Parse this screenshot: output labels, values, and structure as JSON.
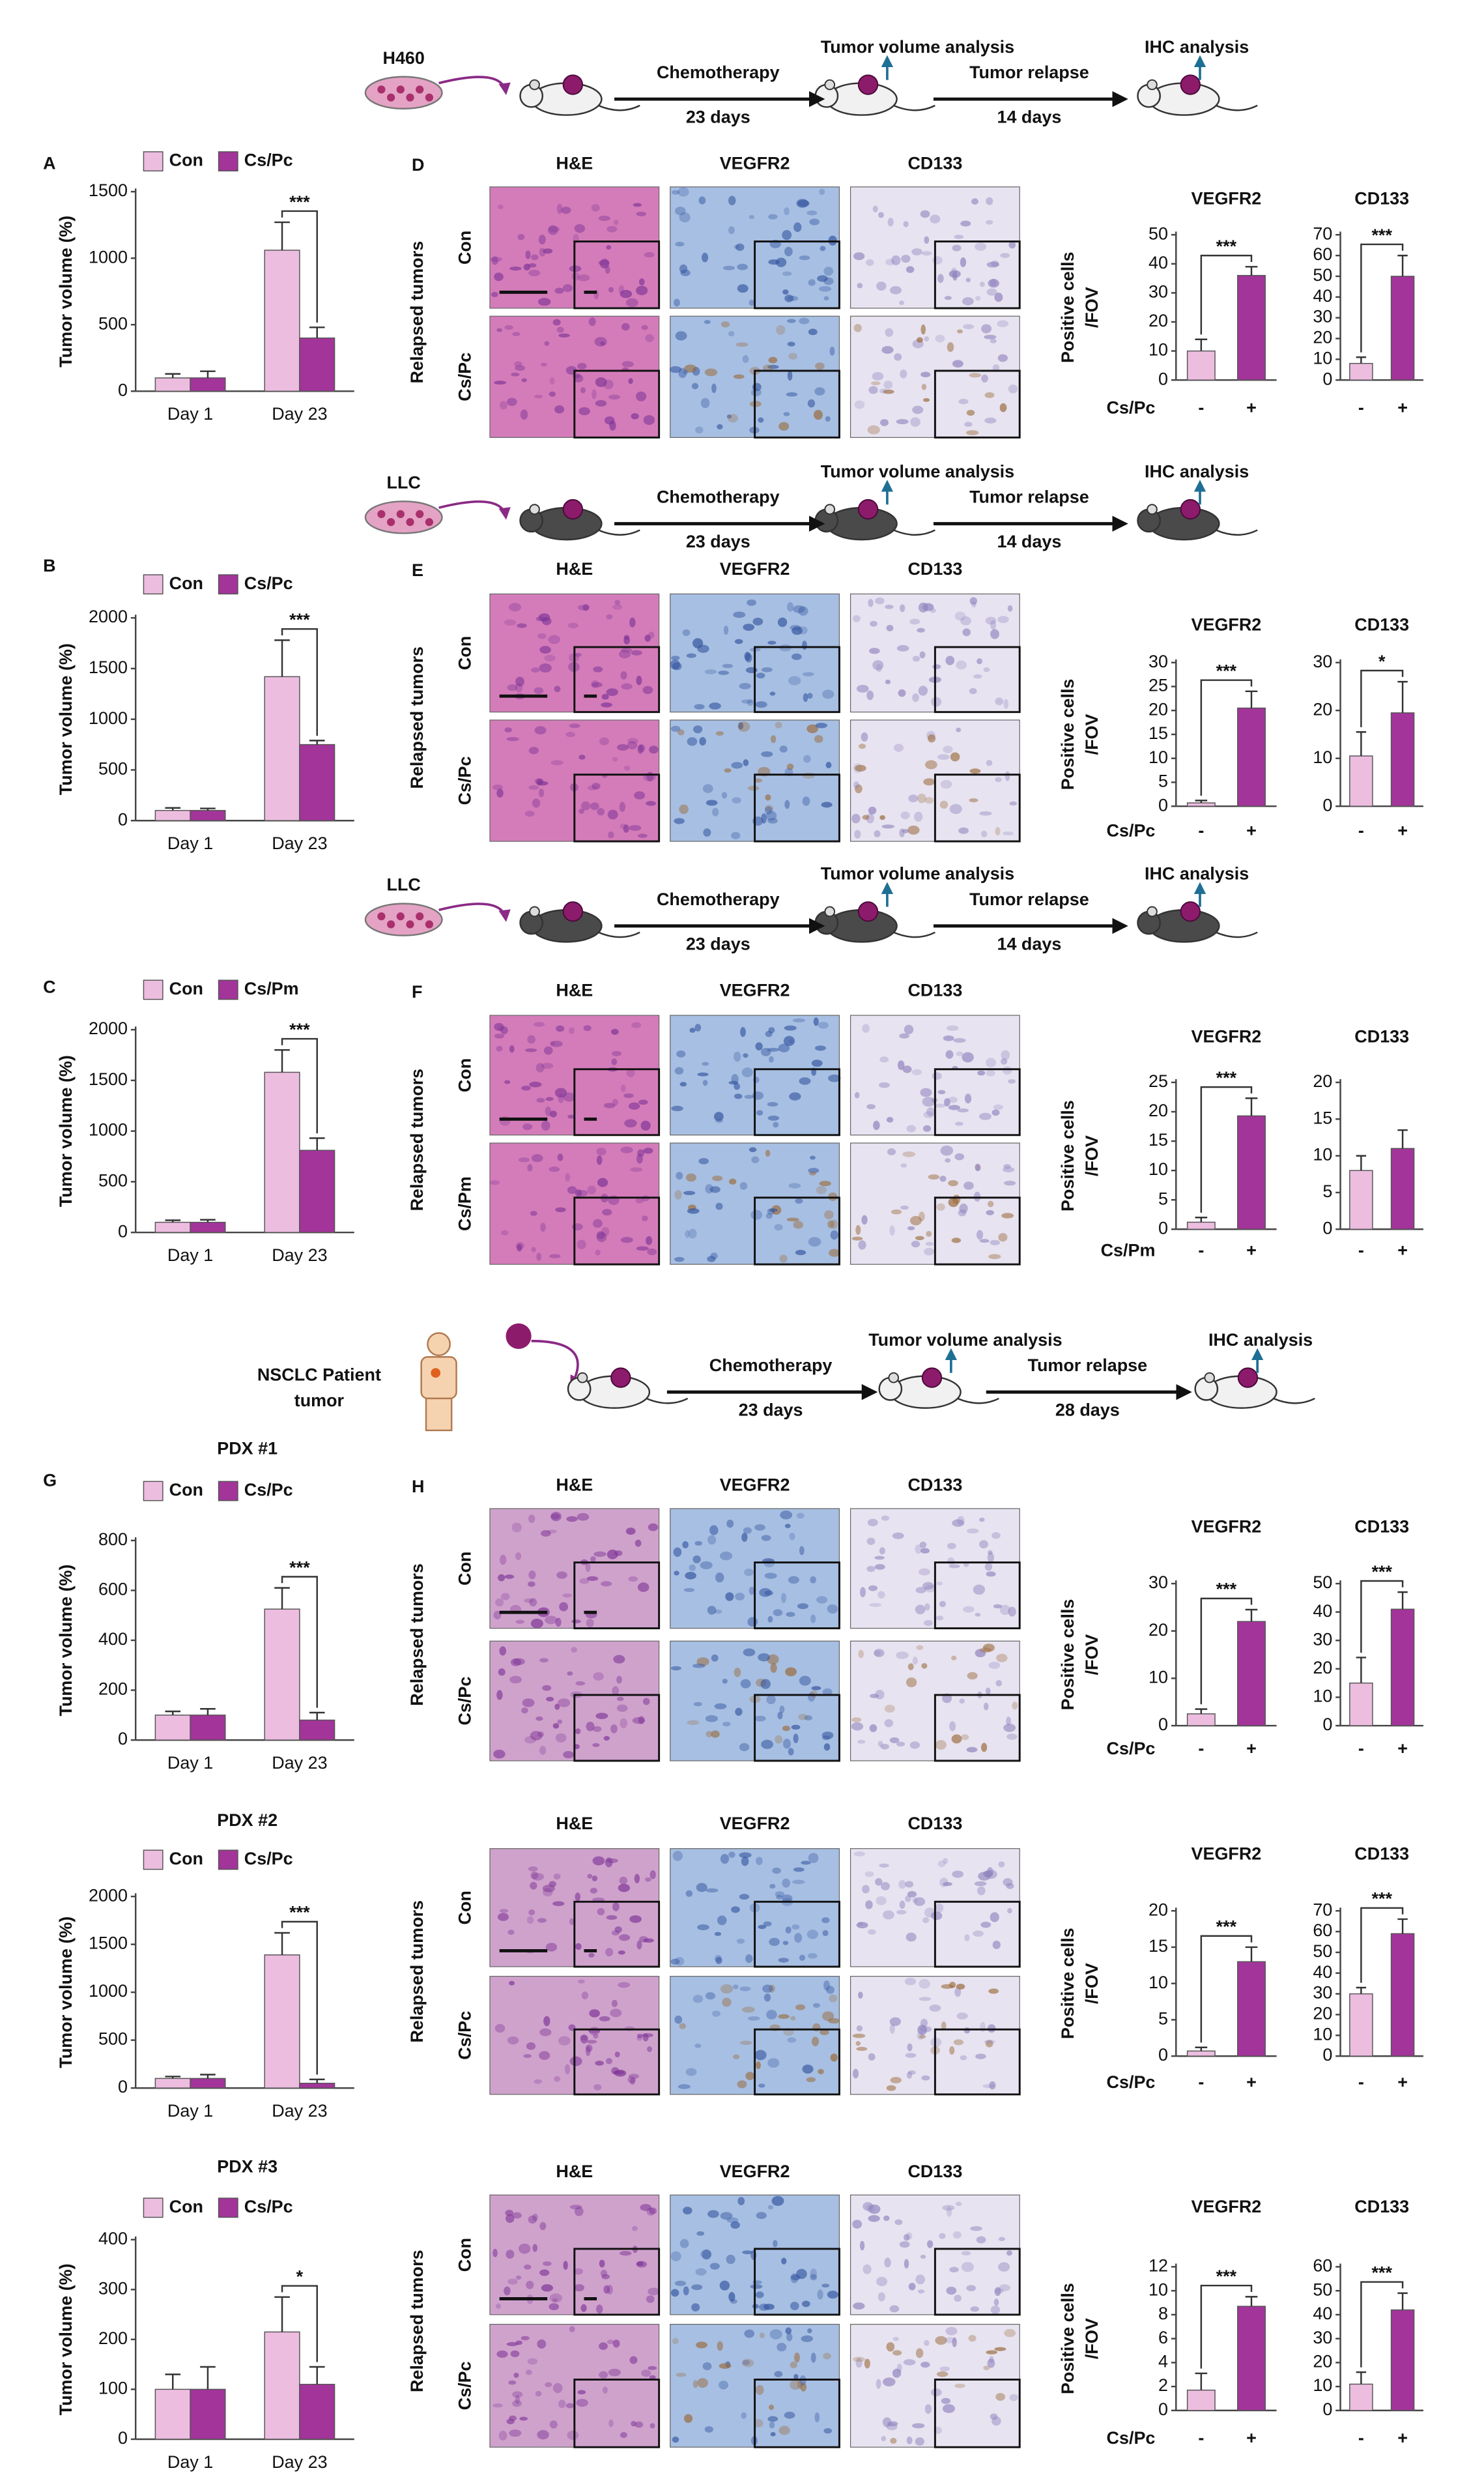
{
  "schematics": [
    {
      "source": [
        "H460"
      ],
      "steps": [
        "Chemotherapy",
        "Tumor relapse"
      ],
      "durations": [
        "23 days",
        "14 days"
      ],
      "analyses": [
        "Tumor volume analysis",
        "IHC analysis"
      ]
    },
    {
      "source": [
        "LLC"
      ],
      "steps": [
        "Chemotherapy",
        "Tumor relapse"
      ],
      "durations": [
        "23 days",
        "14 days"
      ],
      "analyses": [
        "Tumor volume analysis",
        "IHC analysis"
      ]
    },
    {
      "source": [
        "LLC"
      ],
      "steps": [
        "Chemotherapy",
        "Tumor relapse"
      ],
      "durations": [
        "23 days",
        "14 days"
      ],
      "analyses": [
        "Tumor volume analysis",
        "IHC analysis"
      ]
    },
    {
      "source": [
        "NSCLC Patient",
        "tumor"
      ],
      "steps": [
        "Chemotherapy",
        "Tumor relapse"
      ],
      "durations": [
        "23 days",
        "28 days"
      ],
      "analyses": [
        "Tumor volume analysis",
        "IHC analysis"
      ]
    }
  ],
  "ihc": [
    {
      "panel": "D",
      "columns": [
        "H&E",
        "VEGFR2",
        "CD133"
      ],
      "rows": [
        "Con",
        "Cs/Pc"
      ],
      "side_label": "Relapsed tumors"
    },
    {
      "panel": "E",
      "columns": [
        "H&E",
        "VEGFR2",
        "CD133"
      ],
      "rows": [
        "Con",
        "Cs/Pc"
      ],
      "side_label": "Relapsed tumors"
    },
    {
      "panel": "F",
      "columns": [
        "H&E",
        "VEGFR2",
        "CD133"
      ],
      "rows": [
        "Con",
        "Cs/Pm"
      ],
      "side_label": "Relapsed tumors"
    },
    {
      "panel": "H",
      "columns": [
        "H&E",
        "VEGFR2",
        "CD133"
      ],
      "rows": [
        "Con",
        "Cs/Pc"
      ],
      "side_label": "Relapsed tumors"
    },
    {
      "columns": [
        "H&E",
        "VEGFR2",
        "CD133"
      ],
      "rows": [
        "Con",
        "Cs/Pc"
      ],
      "side_label": "Relapsed tumors"
    },
    {
      "columns": [
        "H&E",
        "VEGFR2",
        "CD133"
      ],
      "rows": [
        "Con",
        "Cs/Pc"
      ],
      "side_label": "Relapsed tumors"
    }
  ],
  "chart_data": [
    {
      "type": "bar",
      "panel": "A",
      "ylabel": "Tumor volume (%)",
      "categories": [
        "Day 1",
        "Day 23"
      ],
      "series": [
        {
          "name": "Con",
          "color": "#edbde0",
          "values": [
            100,
            1060
          ],
          "errors": [
            30,
            210
          ]
        },
        {
          "name": "Cs/Pc",
          "color": "#a3349a",
          "values": [
            100,
            400
          ],
          "errors": [
            50,
            80
          ]
        }
      ],
      "ylim": [
        0,
        1500
      ],
      "yticks": [
        0,
        500,
        1000,
        1500
      ],
      "significance": "***"
    },
    {
      "type": "bar",
      "title": "VEGFR2",
      "ylabel": [
        "Positive cells",
        "/FOV"
      ],
      "xlabel": "Cs/Pc",
      "categories": [
        "-",
        "+"
      ],
      "values": [
        10,
        36
      ],
      "errors": [
        4,
        3
      ],
      "colors": [
        "#edbde0",
        "#a3349a"
      ],
      "ylim": [
        0,
        50
      ],
      "yticks": [
        0,
        10,
        20,
        30,
        40,
        50
      ],
      "significance": "***"
    },
    {
      "type": "bar",
      "title": "CD133",
      "categories": [
        "-",
        "+"
      ],
      "values": [
        8,
        50
      ],
      "errors": [
        3,
        10
      ],
      "colors": [
        "#edbde0",
        "#a3349a"
      ],
      "ylim": [
        0,
        70
      ],
      "yticks": [
        0,
        10,
        20,
        30,
        40,
        50,
        60,
        70
      ],
      "significance": "***"
    },
    {
      "type": "bar",
      "panel": "B",
      "ylabel": "Tumor volume (%)",
      "categories": [
        "Day 1",
        "Day 23"
      ],
      "series": [
        {
          "name": "Con",
          "color": "#edbde0",
          "values": [
            100,
            1420
          ],
          "errors": [
            25,
            360
          ]
        },
        {
          "name": "Cs/Pc",
          "color": "#a3349a",
          "values": [
            100,
            750
          ],
          "errors": [
            20,
            40
          ]
        }
      ],
      "ylim": [
        0,
        2000
      ],
      "yticks": [
        0,
        500,
        1000,
        1500,
        2000
      ],
      "significance": "***"
    },
    {
      "type": "bar",
      "title": "VEGFR2",
      "ylabel": [
        "Positive cells",
        "/FOV"
      ],
      "xlabel": "Cs/Pc",
      "categories": [
        "-",
        "+"
      ],
      "values": [
        0.7,
        20.5
      ],
      "errors": [
        0.5,
        3.5
      ],
      "colors": [
        "#edbde0",
        "#a3349a"
      ],
      "ylim": [
        0,
        30
      ],
      "yticks": [
        0,
        5,
        10,
        15,
        20,
        25,
        30
      ],
      "significance": "***"
    },
    {
      "type": "bar",
      "title": "CD133",
      "categories": [
        "-",
        "+"
      ],
      "values": [
        10.5,
        19.5
      ],
      "errors": [
        5,
        6.5
      ],
      "colors": [
        "#edbde0",
        "#a3349a"
      ],
      "ylim": [
        0,
        30
      ],
      "yticks": [
        0,
        10,
        20,
        30
      ],
      "significance": "*"
    },
    {
      "type": "bar",
      "panel": "C",
      "ylabel": "Tumor volume (%)",
      "categories": [
        "Day 1",
        "Day 23"
      ],
      "series": [
        {
          "name": "Con",
          "color": "#edbde0",
          "values": [
            100,
            1580
          ],
          "errors": [
            20,
            220
          ]
        },
        {
          "name": "Cs/Pm",
          "color": "#a3349a",
          "values": [
            100,
            810
          ],
          "errors": [
            25,
            120
          ]
        }
      ],
      "ylim": [
        0,
        2000
      ],
      "yticks": [
        0,
        500,
        1000,
        1500,
        2000
      ],
      "significance": "***"
    },
    {
      "type": "bar",
      "title": "VEGFR2",
      "ylabel": [
        "Positive cells",
        "/FOV"
      ],
      "xlabel": "Cs/Pm",
      "categories": [
        "-",
        "+"
      ],
      "values": [
        1.2,
        19.3
      ],
      "errors": [
        0.8,
        3
      ],
      "colors": [
        "#edbde0",
        "#a3349a"
      ],
      "ylim": [
        0,
        25
      ],
      "yticks": [
        0,
        5,
        10,
        15,
        20,
        25
      ],
      "significance": "***"
    },
    {
      "type": "bar",
      "title": "CD133",
      "categories": [
        "-",
        "+"
      ],
      "values": [
        8,
        11
      ],
      "errors": [
        2,
        2.5
      ],
      "colors": [
        "#edbde0",
        "#a3349a"
      ],
      "ylim": [
        0,
        20
      ],
      "yticks": [
        0,
        5,
        10,
        15,
        20
      ]
    },
    {
      "type": "bar",
      "panel": "G",
      "title": "PDX #1",
      "ylabel": "Tumor volume (%)",
      "categories": [
        "Day 1",
        "Day 23"
      ],
      "series": [
        {
          "name": "Con",
          "color": "#edbde0",
          "values": [
            100,
            525
          ],
          "errors": [
            15,
            85
          ]
        },
        {
          "name": "Cs/Pc",
          "color": "#a3349a",
          "values": [
            100,
            80
          ],
          "errors": [
            25,
            30
          ]
        }
      ],
      "ylim": [
        0,
        800
      ],
      "yticks": [
        0,
        200,
        400,
        600,
        800
      ],
      "significance": "***"
    },
    {
      "type": "bar",
      "title": "VEGFR2",
      "ylabel": [
        "Positive cells",
        "/FOV"
      ],
      "xlabel": "Cs/Pc",
      "categories": [
        "-",
        "+"
      ],
      "values": [
        2.5,
        22
      ],
      "errors": [
        1,
        2.5
      ],
      "colors": [
        "#edbde0",
        "#a3349a"
      ],
      "ylim": [
        0,
        30
      ],
      "yticks": [
        0,
        10,
        20,
        30
      ],
      "significance": "***"
    },
    {
      "type": "bar",
      "title": "CD133",
      "categories": [
        "-",
        "+"
      ],
      "values": [
        15,
        41
      ],
      "errors": [
        9,
        6
      ],
      "colors": [
        "#edbde0",
        "#a3349a"
      ],
      "ylim": [
        0,
        50
      ],
      "yticks": [
        0,
        10,
        20,
        30,
        40,
        50
      ],
      "significance": "***"
    },
    {
      "type": "bar",
      "title": "PDX #2",
      "ylabel": "Tumor volume (%)",
      "categories": [
        "Day 1",
        "Day 23"
      ],
      "series": [
        {
          "name": "Con",
          "color": "#edbde0",
          "values": [
            100,
            1390
          ],
          "errors": [
            20,
            230
          ]
        },
        {
          "name": "Cs/Pc",
          "color": "#a3349a",
          "values": [
            100,
            50
          ],
          "errors": [
            40,
            40
          ]
        }
      ],
      "ylim": [
        0,
        2000
      ],
      "yticks": [
        0,
        500,
        1000,
        1500,
        2000
      ],
      "significance": "***"
    },
    {
      "type": "bar",
      "title": "VEGFR2",
      "ylabel": [
        "Positive cells",
        "/FOV"
      ],
      "xlabel": "Cs/Pc",
      "categories": [
        "-",
        "+"
      ],
      "values": [
        0.7,
        13
      ],
      "errors": [
        0.5,
        2
      ],
      "colors": [
        "#edbde0",
        "#a3349a"
      ],
      "ylim": [
        0,
        20
      ],
      "yticks": [
        0,
        5,
        10,
        15,
        20
      ],
      "significance": "***"
    },
    {
      "type": "bar",
      "title": "CD133",
      "categories": [
        "-",
        "+"
      ],
      "values": [
        30,
        59
      ],
      "errors": [
        3,
        7
      ],
      "colors": [
        "#edbde0",
        "#a3349a"
      ],
      "ylim": [
        0,
        70
      ],
      "yticks": [
        0,
        10,
        20,
        30,
        40,
        50,
        60,
        70
      ],
      "significance": "***"
    },
    {
      "type": "bar",
      "title": "PDX #3",
      "ylabel": "Tumor volume (%)",
      "categories": [
        "Day 1",
        "Day 23"
      ],
      "series": [
        {
          "name": "Con",
          "color": "#edbde0",
          "values": [
            100,
            215
          ],
          "errors": [
            30,
            70
          ]
        },
        {
          "name": "Cs/Pc",
          "color": "#a3349a",
          "values": [
            100,
            110
          ],
          "errors": [
            45,
            35
          ]
        }
      ],
      "ylim": [
        0,
        400
      ],
      "yticks": [
        0,
        100,
        200,
        300,
        400
      ],
      "significance": "*"
    },
    {
      "type": "bar",
      "title": "VEGFR2",
      "ylabel": [
        "Positive cells",
        "/FOV"
      ],
      "xlabel": "Cs/Pc",
      "categories": [
        "-",
        "+"
      ],
      "values": [
        1.7,
        8.7
      ],
      "errors": [
        1.4,
        0.8
      ],
      "colors": [
        "#edbde0",
        "#a3349a"
      ],
      "ylim": [
        0,
        12
      ],
      "yticks": [
        0,
        2,
        4,
        6,
        8,
        10,
        12
      ],
      "significance": "***"
    },
    {
      "type": "bar",
      "title": "CD133",
      "categories": [
        "-",
        "+"
      ],
      "values": [
        11,
        42
      ],
      "errors": [
        5,
        7
      ],
      "colors": [
        "#edbde0",
        "#a3349a"
      ],
      "ylim": [
        0,
        60
      ],
      "yticks": [
        0,
        10,
        20,
        30,
        40,
        50,
        60
      ],
      "significance": "***"
    }
  ]
}
